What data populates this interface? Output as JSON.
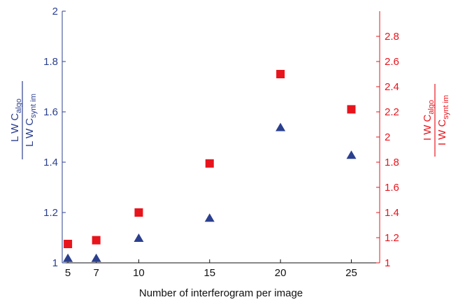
{
  "chart_data": {
    "type": "scatter",
    "x_label": "Number of interferogram per image",
    "x_ticks": [
      5,
      7,
      10,
      15,
      20,
      25
    ],
    "x_range": [
      4.6,
      27
    ],
    "left_axis": {
      "label_num": "L W C",
      "label_num_sub": "algo",
      "label_den": "L W C",
      "label_den_sub": "synt im",
      "range": [
        1,
        2
      ],
      "ticks": [
        1,
        1.2,
        1.4,
        1.6,
        1.8,
        2
      ],
      "tick_labels": [
        "1",
        "1.2",
        "1.4",
        "1.6",
        "1.8",
        "2"
      ],
      "color": "#2b3f8f"
    },
    "right_axis": {
      "label_num": "I W C",
      "label_num_sub": "algo",
      "label_den": "I W C",
      "label_den_sub": "synt im",
      "range": [
        1,
        3
      ],
      "ticks": [
        1,
        1.2,
        1.4,
        1.6,
        1.8,
        2,
        2.2,
        2.4,
        2.6,
        2.8
      ],
      "tick_labels": [
        "1",
        "1.2",
        "1.4",
        "1.6",
        "1.8",
        "2",
        "2.2",
        "2.4",
        "2.6",
        "2.8"
      ],
      "color": "#e8141c"
    },
    "series": [
      {
        "axis": "left",
        "marker": "triangle",
        "color": "#2b3f8f",
        "x": [
          5,
          7,
          10,
          15,
          20,
          25
        ],
        "y": [
          1.02,
          1.02,
          1.1,
          1.18,
          1.54,
          1.43
        ]
      },
      {
        "axis": "right",
        "marker": "square",
        "color": "#e8141c",
        "x": [
          5,
          7,
          10,
          15,
          20,
          25
        ],
        "y": [
          1.15,
          1.18,
          1.4,
          1.79,
          2.5,
          2.22
        ]
      }
    ]
  }
}
